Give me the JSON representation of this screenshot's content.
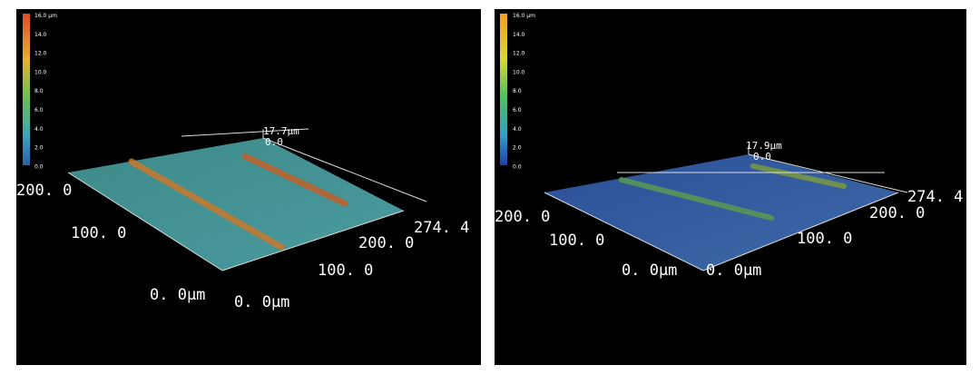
{
  "panels": [
    {
      "scale": [
        "16.0 µm",
        "14.0",
        "12.0",
        "10.0",
        "8.0",
        "6.0",
        "4.0",
        "2.0",
        "0.0"
      ],
      "z_top": "17.7µm",
      "z_zero": "0.0",
      "y_labels": [
        "200. 0",
        "100. 0",
        "0. 0µm"
      ],
      "x_labels": [
        "0. 0µm",
        "100. 0",
        "200. 0",
        "274. 4"
      ]
    },
    {
      "scale": [
        "16.0 µm",
        "14.0",
        "12.0",
        "10.0",
        "8.0",
        "6.0",
        "4.0",
        "2.0",
        "0.0"
      ],
      "z_top": "17.9µm",
      "z_zero": "0.0",
      "y_labels": [
        "200. 0",
        "100. 0",
        "0. 0µm"
      ],
      "x_labels": [
        "0. 0µm",
        "100. 0",
        "200. 0",
        "274. 4"
      ]
    }
  ]
}
